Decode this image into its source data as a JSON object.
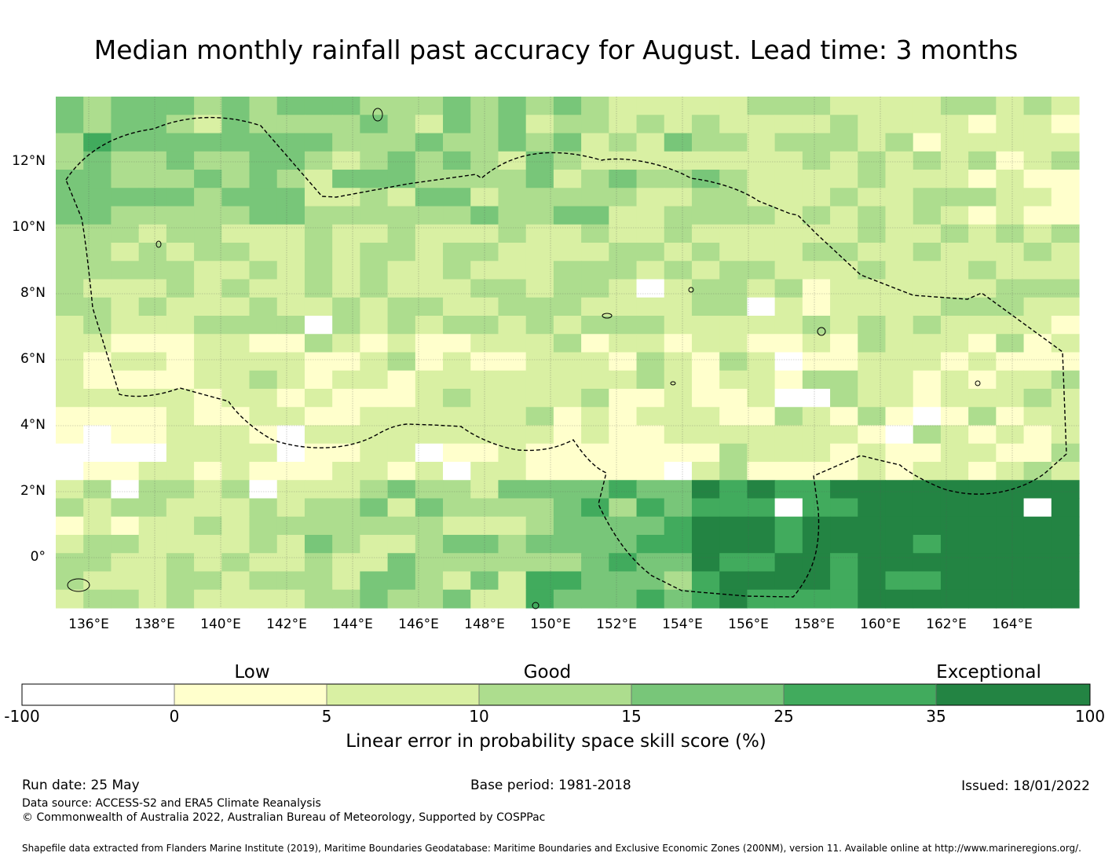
{
  "title": "Median monthly rainfall past accuracy for August. Lead time: 3 months",
  "map": {
    "lon_range": [
      135,
      166
    ],
    "lat_range": [
      -1.5,
      14
    ],
    "lon_ticks": [
      "136°E",
      "138°E",
      "140°E",
      "142°E",
      "144°E",
      "146°E",
      "148°E",
      "150°E",
      "152°E",
      "154°E",
      "156°E",
      "158°E",
      "160°E",
      "162°E",
      "164°E"
    ],
    "lat_ticks": [
      "12°N",
      "10°N",
      "8°N",
      "6°N",
      "4°N",
      "2°N",
      "0°"
    ],
    "grid": true,
    "colors": {
      "neg": "#ffffff",
      "c0_5": "#ffffcc",
      "c5_10": "#d9f0a3",
      "c10_15": "#addd8e",
      "c15_25": "#78c679",
      "c25_35": "#41ab5d",
      "c35_100": "#238443"
    }
  },
  "colorbar": {
    "categories": [
      "Low",
      "Good",
      "Exceptional"
    ],
    "ticks": [
      "-100",
      "0",
      "5",
      "10",
      "15",
      "25",
      "35",
      "100"
    ],
    "label": "Linear error in probability space skill score (%)"
  },
  "footer": {
    "run_date": "Run date: 25 May",
    "base_period": "Base period: 1981-2018",
    "issued": "Issued: 18/01/2022",
    "data_source": "Data source: ACCESS-S2 and ERA5 Climate Reanalysis",
    "copyright": "© Commonwealth of Australia 2022, Australian Bureau of Meteorology, Supported by COSPPac",
    "shapefile": "Shapefile data extracted from Flanders Marine Institute (2019), Maritime Boundaries Geodatabase: Maritime Boundaries and Exclusive Economic Zones (200NM), version 11. Available online at http://www.marineregions.org/."
  }
}
